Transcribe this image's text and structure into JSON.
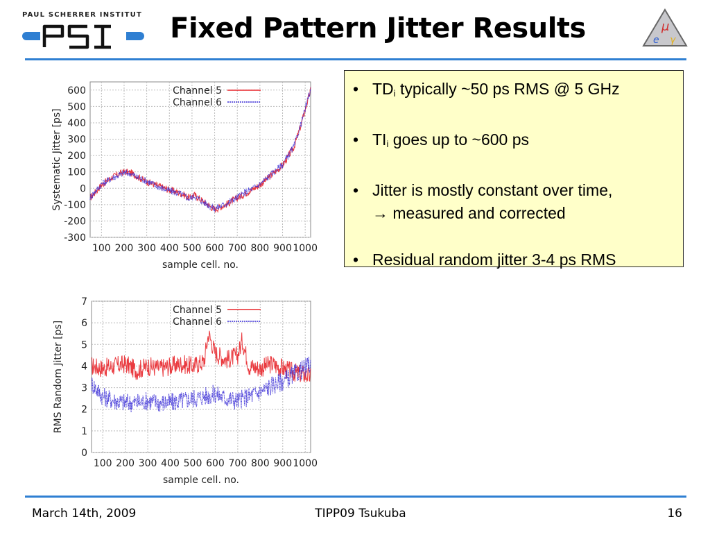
{
  "header": {
    "institute_name": "PAUL SCHERRER INSTITUT",
    "logo_text": "PSI",
    "title": "Fixed Pattern Jitter Results"
  },
  "bullets": [
    {
      "prefix": "TD",
      "sub": "i",
      "text": " typically ~50 ps RMS @ 5 GHz"
    },
    {
      "prefix": "TI",
      "sub": "i",
      "text": " goes up to ~600 ps"
    },
    {
      "prefix": "",
      "sub": "",
      "text": "Jitter is mostly constant over time,",
      "line2_symbol": "→",
      "line2": " measured and corrected"
    },
    {
      "prefix": "",
      "sub": "",
      "text": "Residual random jitter 3-4 ps RMS"
    }
  ],
  "footer": {
    "date": "March 14th, 2009",
    "event": "TIPP09 Tsukuba",
    "page": "16"
  },
  "colors": {
    "accent_rule": "#2f7fd2",
    "box_fill": "#ffffc9",
    "channel5": "#e8262b",
    "channel6": "#3b2fd6"
  },
  "chart_data": [
    {
      "type": "line",
      "xlabel": "sample cell. no.",
      "ylabel": "Systematic Jitter [ps]",
      "xlim": [
        50,
        1024
      ],
      "ylim": [
        -300,
        650
      ],
      "xticks": [
        100,
        200,
        300,
        400,
        500,
        600,
        700,
        800,
        900,
        1000
      ],
      "yticks": [
        -300,
        -200,
        -100,
        0,
        100,
        200,
        300,
        400,
        500,
        600
      ],
      "grid": true,
      "legend": "top-right",
      "series": [
        {
          "name": "Channel 5",
          "x": [
            50,
            100,
            150,
            200,
            230,
            260,
            300,
            350,
            400,
            450,
            490,
            510,
            550,
            600,
            650,
            700,
            750,
            800,
            850,
            900,
            950,
            980,
            1000,
            1024
          ],
          "y": [
            -60,
            20,
            70,
            100,
            95,
            70,
            40,
            15,
            -10,
            -30,
            -60,
            -40,
            -80,
            -130,
            -100,
            -60,
            -20,
            20,
            80,
            140,
            250,
            380,
            480,
            600
          ]
        },
        {
          "name": "Channel 6",
          "x": [
            50,
            100,
            150,
            200,
            230,
            260,
            300,
            350,
            400,
            450,
            490,
            510,
            550,
            600,
            650,
            700,
            750,
            800,
            850,
            900,
            950,
            980,
            1000,
            1024
          ],
          "y": [
            -55,
            25,
            65,
            95,
            90,
            65,
            45,
            10,
            -15,
            -35,
            -65,
            -45,
            -85,
            -125,
            -95,
            -55,
            -15,
            25,
            85,
            145,
            255,
            385,
            485,
            605
          ]
        }
      ]
    },
    {
      "type": "line",
      "xlabel": "sample cell. no.",
      "ylabel": "RMS Random Jitter [ps]",
      "xlim": [
        50,
        1024
      ],
      "ylim": [
        0,
        7
      ],
      "xticks": [
        100,
        200,
        300,
        400,
        500,
        600,
        700,
        800,
        900,
        1000
      ],
      "yticks": [
        0,
        1,
        2,
        3,
        4,
        5,
        6,
        7
      ],
      "grid": true,
      "legend": "top-right",
      "series": [
        {
          "name": "Channel 5",
          "x": [
            50,
            100,
            150,
            200,
            250,
            300,
            350,
            400,
            450,
            500,
            550,
            570,
            600,
            650,
            700,
            720,
            750,
            800,
            850,
            900,
            950,
            1000,
            1024
          ],
          "y": [
            4.0,
            3.9,
            4.0,
            4.1,
            3.8,
            4.0,
            3.9,
            4.0,
            4.1,
            4.0,
            4.2,
            5.5,
            4.6,
            4.3,
            4.5,
            5.2,
            4.0,
            3.9,
            4.1,
            3.9,
            3.7,
            3.6,
            3.5
          ]
        },
        {
          "name": "Channel 6",
          "x": [
            50,
            100,
            150,
            200,
            250,
            300,
            350,
            400,
            450,
            500,
            550,
            600,
            650,
            700,
            750,
            800,
            850,
            900,
            950,
            1000,
            1024
          ],
          "y": [
            3.2,
            2.6,
            2.4,
            2.3,
            2.3,
            2.4,
            2.3,
            2.3,
            2.4,
            2.5,
            2.6,
            2.7,
            2.5,
            2.4,
            2.6,
            2.8,
            3.1,
            3.3,
            3.6,
            3.9,
            4.1
          ]
        }
      ]
    }
  ]
}
